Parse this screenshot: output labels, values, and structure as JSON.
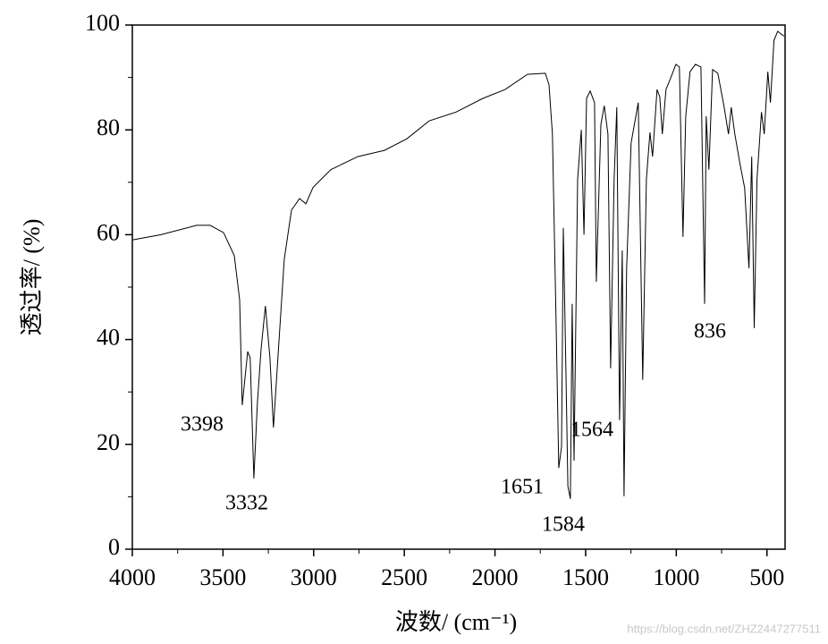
{
  "chart_data": {
    "type": "line",
    "x_label": "波数/ (cm⁻¹)",
    "y_label": "透过率/ (%)",
    "xlim": [
      4000,
      400
    ],
    "ylim": [
      0,
      100
    ],
    "xticks": [
      4000,
      3500,
      3000,
      2500,
      2000,
      1500,
      1000,
      500
    ],
    "yticks": [
      0,
      20,
      40,
      60,
      80,
      100
    ],
    "color": "#000000",
    "x": [
      4000,
      3842,
      3645,
      3571,
      3497,
      3438,
      3408,
      3394,
      3364,
      3350,
      3330,
      3310,
      3290,
      3266,
      3241,
      3222,
      3197,
      3162,
      3122,
      3078,
      3043,
      3004,
      2905,
      2757,
      2610,
      2486,
      2363,
      2215,
      2067,
      1944,
      1821,
      1722,
      1702,
      1683,
      1663,
      1648,
      1633,
      1623,
      1608,
      1598,
      1584,
      1574,
      1564,
      1544,
      1524,
      1509,
      1495,
      1475,
      1451,
      1441,
      1416,
      1397,
      1377,
      1362,
      1343,
      1328,
      1313,
      1298,
      1288,
      1274,
      1249,
      1210,
      1185,
      1165,
      1145,
      1131,
      1106,
      1091,
      1077,
      1057,
      1032,
      1002,
      983,
      963,
      948,
      924,
      894,
      864,
      844,
      835,
      820,
      800,
      771,
      736,
      712,
      697,
      677,
      647,
      623,
      599,
      584,
      570,
      555,
      530,
      515,
      495,
      481,
      461,
      441,
      422,
      406
    ],
    "values": [
      59,
      60,
      61.8,
      61.8,
      60.4,
      56,
      47.6,
      27.5,
      37.7,
      36.5,
      13.5,
      28,
      38.2,
      46.4,
      36.5,
      23.2,
      36.5,
      55.3,
      64.7,
      66.9,
      65.9,
      69,
      72.4,
      74.9,
      76.1,
      78.3,
      81.7,
      83.4,
      86,
      87.7,
      90.6,
      90.8,
      88.6,
      79.2,
      43.3,
      15.5,
      19.5,
      61.3,
      33.1,
      12,
      9.6,
      46.8,
      16.9,
      70.6,
      80,
      60,
      86,
      87.4,
      85.2,
      51,
      81,
      84.6,
      79.2,
      34.5,
      70.6,
      84.3,
      24.6,
      57,
      10.1,
      53.6,
      77.5,
      85.2,
      32.3,
      70.6,
      79.5,
      74.9,
      87.7,
      86.3,
      79.2,
      87.7,
      89.8,
      92.5,
      92,
      59.6,
      82.6,
      91.1,
      92.5,
      92,
      46.8,
      82.6,
      72.4,
      91.5,
      90.8,
      84.3,
      79.2,
      84.3,
      79.2,
      73.2,
      68.9,
      53.6,
      74.9,
      42.2,
      70.6,
      83.4,
      79.2,
      91.1,
      85.2,
      97.1,
      98.8,
      98.3,
      97.9
    ],
    "annotations": [
      "3398",
      "3332",
      "1651",
      "1584",
      "1564",
      "836"
    ],
    "watermark": "https://blog.csdn.net/ZHZ2447277511"
  }
}
